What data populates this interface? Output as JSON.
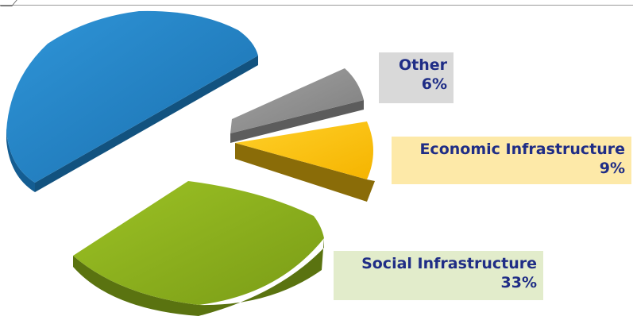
{
  "chart_data": {
    "type": "pie",
    "title": "",
    "slices": [
      {
        "label": "",
        "value": 52,
        "color": "#1f7fc1",
        "side": "#145d92"
      },
      {
        "label": "Social Infrastructure",
        "value": 33,
        "value_label": "33%",
        "color": "#8aad1d",
        "side": "#5a7310"
      },
      {
        "label": "Economic Infrastructure",
        "value": 9,
        "value_label": "9%",
        "color": "#fdc20a",
        "side": "#8a6c08"
      },
      {
        "label": "Other",
        "value": 6,
        "value_label": "6%",
        "color": "#8e8e8e",
        "side": "#5c5c5c"
      }
    ],
    "legend_boxes": {
      "other": {
        "name": "Other",
        "pct": "6%",
        "bg": "#d9d9d9"
      },
      "economic": {
        "name": "Economic Infrastructure",
        "pct": "9%",
        "bg": "#fde9a8"
      },
      "social": {
        "name": "Social Infrastructure",
        "pct": "33%",
        "bg": "#e2eccb"
      }
    }
  }
}
